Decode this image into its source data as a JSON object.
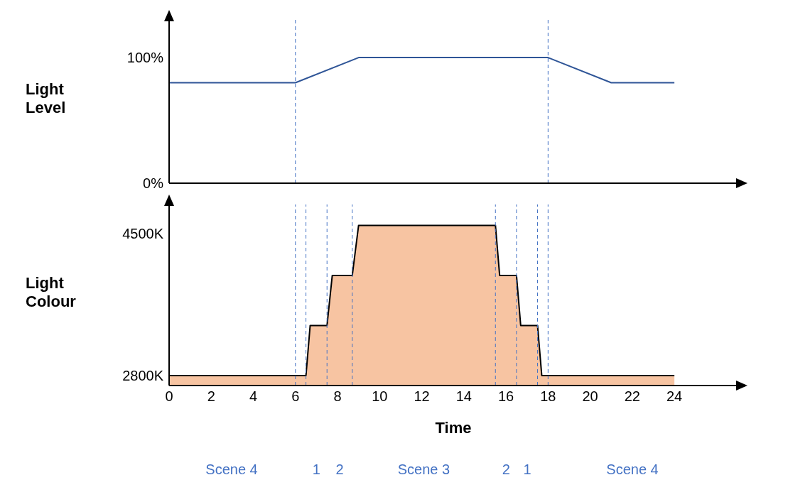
{
  "chart_data": [
    {
      "type": "line",
      "ylabel": "Light Level",
      "x": [
        0,
        6,
        9,
        18,
        21,
        24
      ],
      "values": [
        80,
        80,
        100,
        100,
        80,
        80
      ],
      "color": "#2f5597",
      "xlim": [
        0,
        27
      ],
      "xticks": [
        0,
        2,
        4,
        6,
        8,
        10,
        12,
        14,
        16,
        18,
        20,
        22,
        24
      ],
      "ylim": [
        0,
        130
      ],
      "yticks": [
        {
          "value": 0,
          "label": "0%"
        },
        {
          "value": 100,
          "label": "100%"
        }
      ],
      "tick_labels": "y",
      "ref_lines": [
        {
          "axis": "x",
          "value": 6,
          "color": "#4472c4",
          "line_style": "dashed"
        },
        {
          "axis": "x",
          "value": 18,
          "color": "#4472c4",
          "line_style": "dashed"
        }
      ]
    },
    {
      "type": "area",
      "ylabel": "Light Colour",
      "xlabel": "Time",
      "x": [
        0,
        6.5,
        6.7,
        7.5,
        7.75,
        8.7,
        9,
        15.5,
        15.7,
        16.5,
        16.7,
        17.5,
        17.7,
        24
      ],
      "values": [
        2800,
        2800,
        3400,
        3400,
        4000,
        4000,
        4600,
        4600,
        4000,
        4000,
        3400,
        3400,
        2800,
        2800
      ],
      "color": "#ed7d31",
      "xlim": [
        0,
        27
      ],
      "xticks": [
        0,
        2,
        4,
        6,
        8,
        10,
        12,
        14,
        16,
        18,
        20,
        22,
        24
      ],
      "ylim": [
        2680,
        4850
      ],
      "yticks": [
        {
          "value": 2800,
          "label": "2800K"
        },
        {
          "value": 4500,
          "label": "4500K"
        }
      ],
      "ref_lines": [
        {
          "axis": "x",
          "value": 6,
          "color": "#4472c4",
          "line_style": "dashed"
        },
        {
          "axis": "x",
          "value": 6.5,
          "color": "#4472c4",
          "line_style": "dashed"
        },
        {
          "axis": "x",
          "value": 7.5,
          "color": "#4472c4",
          "line_style": "dashed"
        },
        {
          "axis": "x",
          "value": 8.7,
          "color": "#4472c4",
          "line_style": "dashed"
        },
        {
          "axis": "x",
          "value": 15.5,
          "color": "#4472c4",
          "line_style": "dashed"
        },
        {
          "axis": "x",
          "value": 16.5,
          "color": "#4472c4",
          "line_style": "dashed"
        },
        {
          "axis": "x",
          "value": 17.5,
          "color": "#4472c4",
          "line_style": "dashed"
        },
        {
          "axis": "x",
          "value": 18,
          "color": "#4472c4",
          "line_style": "dashed"
        }
      ],
      "annotations": [
        "Scene 4",
        "1",
        "2",
        "Scene 3",
        "2",
        "1",
        "Scene 4"
      ]
    }
  ]
}
